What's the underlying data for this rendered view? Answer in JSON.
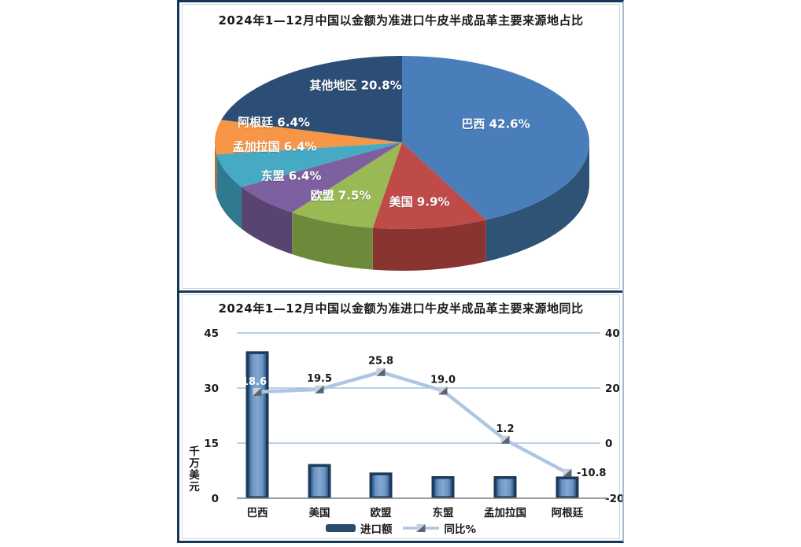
{
  "figure": {
    "border_color": "#17365D",
    "background": "#FFFFFF"
  },
  "chart_data": [
    {
      "type": "pie",
      "style": "3d-pie",
      "title": "2024年1—12月中国以金额为准进口牛皮半成品革主要来源地占比",
      "direction": "clockwise",
      "start_angle_deg": 0,
      "label_color": "#FFFFFF",
      "label_format": "{name} {value}%",
      "slices": [
        {
          "name": "巴西",
          "value": 42.6,
          "color": "#4A7EBB",
          "side_color": "#2E5377"
        },
        {
          "name": "美国",
          "value": 9.9,
          "color": "#BE4B48",
          "side_color": "#8A3431"
        },
        {
          "name": "欧盟",
          "value": 7.5,
          "color": "#98B954",
          "side_color": "#6C8A39"
        },
        {
          "name": "东盟",
          "value": 6.4,
          "color": "#7D60A0",
          "side_color": "#594370"
        },
        {
          "name": "孟加拉国",
          "value": 6.4,
          "color": "#46AAC5",
          "side_color": "#2F7A90"
        },
        {
          "name": "阿根廷",
          "value": 6.4,
          "color": "#F79646",
          "side_color": "#BA6A28"
        },
        {
          "name": "其他地区",
          "value": 20.8,
          "color": "#2C4D75",
          "side_color": "#1E3550"
        }
      ]
    },
    {
      "type": "combo",
      "title": "2024年1—12月中国以金额为准进口牛皮半成品革主要来源地同比",
      "categories": [
        "巴西",
        "美国",
        "欧盟",
        "东盟",
        "孟加拉国",
        "阿根廷"
      ],
      "series": [
        {
          "name": "进口额",
          "type": "bar",
          "values": [
            40.0,
            9.3,
            7.0,
            6.0,
            6.0,
            5.9
          ],
          "color": "#4F81BD",
          "edge_color": "#1C3A5A",
          "axis": "left"
        },
        {
          "name": "同比%",
          "type": "line",
          "values": [
            18.6,
            19.5,
            25.8,
            19.0,
            1.2,
            -10.8
          ],
          "labels": [
            "18.6",
            "19.5",
            "25.8",
            "19.0",
            "1.2",
            "-10.8"
          ],
          "color": "#AEC6E2",
          "marker": "two-tone-square",
          "axis": "right"
        }
      ],
      "ylabel_left": "千万美元",
      "axis_left": {
        "min": 0,
        "max": 45,
        "ticks": [
          45,
          30,
          15,
          0
        ]
      },
      "axis_right": {
        "min": -20,
        "max": 40,
        "ticks": [
          40,
          20,
          0,
          -20
        ]
      },
      "grid_color": "#95B3D7",
      "axis_line_color": "#7F7F7F",
      "value_label_color": "#1A1A1A",
      "legend": [
        "进口额",
        "同比%"
      ],
      "legend_position": "bottom"
    }
  ]
}
